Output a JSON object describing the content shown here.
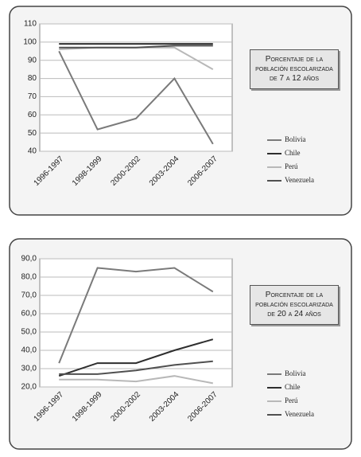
{
  "chart_data": [
    {
      "type": "line",
      "title": "Porcentaje de la población escolarizada de 7 a 12 años",
      "categories": [
        "1996-1997",
        "1998-1999",
        "2000-2002",
        "2003-2004",
        "2006-2007"
      ],
      "series": [
        {
          "name": "Bolivia",
          "color": "#7a7a7a",
          "values": [
            95,
            52,
            58,
            80,
            44
          ]
        },
        {
          "name": "Chile",
          "color": "#2e2e2e",
          "values": [
            99,
            99,
            99,
            99,
            99
          ]
        },
        {
          "name": "Perú",
          "color": "#b8b8b8",
          "values": [
            96,
            97,
            97,
            97,
            85
          ]
        },
        {
          "name": "Venezuela",
          "color": "#505050",
          "values": [
            97,
            97,
            97,
            98,
            98
          ]
        }
      ],
      "ylim": [
        40,
        110
      ],
      "yticks": [
        40,
        50,
        60,
        70,
        80,
        90,
        100,
        110
      ],
      "grid": true
    },
    {
      "type": "line",
      "title": "Porcentaje de la población escolarizada de 20 a 24 años",
      "categories": [
        "1996-1997",
        "1998-1999",
        "2000-2002",
        "2003-2004",
        "2006-2007"
      ],
      "series": [
        {
          "name": "Bolivia",
          "color": "#7a7a7a",
          "values": [
            33,
            85,
            83,
            85,
            72
          ]
        },
        {
          "name": "Chile",
          "color": "#2e2e2e",
          "values": [
            26,
            33,
            33,
            40,
            46
          ]
        },
        {
          "name": "Perú",
          "color": "#b8b8b8",
          "values": [
            24,
            24,
            23,
            26,
            22
          ]
        },
        {
          "name": "Venezuela",
          "color": "#505050",
          "values": [
            27,
            27,
            29,
            32,
            34
          ]
        }
      ],
      "ylim": [
        20,
        90
      ],
      "yticks": [
        {
          "value": 20,
          "label": "20,0"
        },
        {
          "value": 30,
          "label": "30,0"
        },
        {
          "value": 40,
          "label": "40,0"
        },
        {
          "value": 50,
          "label": "50,0"
        },
        {
          "value": 60,
          "label": "60,0"
        },
        {
          "value": 70,
          "label": "70,0"
        },
        {
          "value": 80,
          "label": "80,0"
        },
        {
          "value": 90,
          "label": "90,0"
        }
      ],
      "grid": true
    }
  ]
}
